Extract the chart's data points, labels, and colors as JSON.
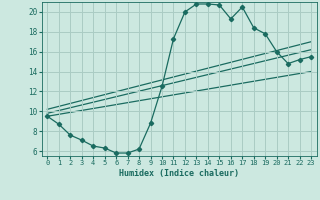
{
  "title": "",
  "xlabel": "Humidex (Indice chaleur)",
  "bg_color": "#cce8e0",
  "grid_color": "#aaccC4",
  "line_color": "#1a6b60",
  "xlim": [
    -0.5,
    23.5
  ],
  "ylim": [
    5.5,
    21.0
  ],
  "xticks": [
    0,
    1,
    2,
    3,
    4,
    5,
    6,
    7,
    8,
    9,
    10,
    11,
    12,
    13,
    14,
    15,
    16,
    17,
    18,
    19,
    20,
    21,
    22,
    23
  ],
  "yticks": [
    6,
    8,
    10,
    12,
    14,
    16,
    18,
    20
  ],
  "curve_x": [
    0,
    1,
    2,
    3,
    4,
    5,
    6,
    7,
    8,
    9,
    10,
    11,
    12,
    13,
    14,
    15,
    16,
    17,
    18,
    19,
    20,
    21,
    22,
    23
  ],
  "curve_y": [
    9.5,
    8.7,
    7.6,
    7.1,
    6.5,
    6.3,
    5.8,
    5.8,
    6.2,
    8.8,
    12.5,
    17.3,
    20.0,
    20.8,
    20.8,
    20.7,
    19.3,
    20.5,
    18.4,
    17.8,
    16.0,
    14.8,
    15.2,
    15.5
  ],
  "line1_x": [
    0,
    23
  ],
  "line1_y": [
    9.5,
    14.0
  ],
  "line2_x": [
    0,
    23
  ],
  "line2_y": [
    9.8,
    16.2
  ],
  "line3_x": [
    0,
    23
  ],
  "line3_y": [
    10.2,
    17.0
  ]
}
